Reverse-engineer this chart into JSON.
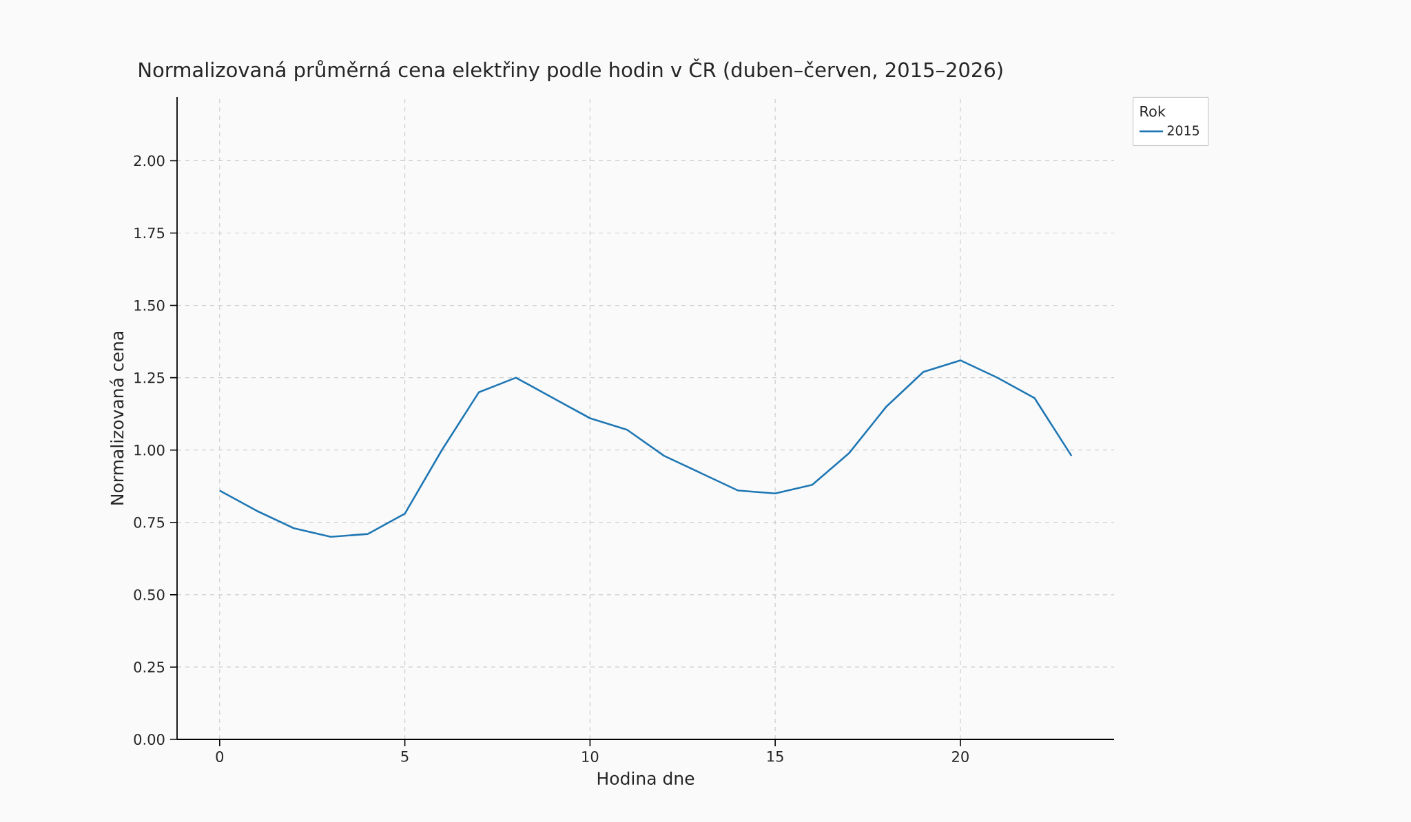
{
  "chart_data": {
    "type": "line",
    "title": "Normalizovaná průměrná cena elektřiny podle hodin v ČR (duben–červen, 2015–2026)",
    "xlabel": "Hodina dne",
    "ylabel": "Normalizovaná cena",
    "legend_title": "Rok",
    "x": [
      0,
      1,
      2,
      3,
      4,
      5,
      6,
      7,
      8,
      9,
      10,
      11,
      12,
      13,
      14,
      15,
      16,
      17,
      18,
      19,
      20,
      21,
      22,
      23
    ],
    "series": [
      {
        "name": "2015",
        "color": "#1f77b4",
        "values": [
          0.86,
          0.79,
          0.73,
          0.7,
          0.71,
          0.78,
          1.0,
          1.2,
          1.25,
          1.18,
          1.11,
          1.07,
          0.98,
          0.92,
          0.86,
          0.85,
          0.88,
          0.99,
          1.15,
          1.27,
          1.31,
          1.25,
          1.18,
          0.98
        ]
      }
    ],
    "xlim": [
      -1.15,
      24.15
    ],
    "ylim": [
      0,
      2.22
    ],
    "xticks": [
      0,
      5,
      10,
      15,
      20
    ],
    "yticks": [
      {
        "value": 0,
        "label": "0.00"
      },
      {
        "value": 0.25,
        "label": "0.25"
      },
      {
        "value": 0.5,
        "label": "0.50"
      },
      {
        "value": 0.75,
        "label": "0.75"
      },
      {
        "value": 1,
        "label": "1.00"
      },
      {
        "value": 1.25,
        "label": "1.25"
      },
      {
        "value": 1.5,
        "label": "1.50"
      },
      {
        "value": 1.75,
        "label": "1.75"
      },
      {
        "value": 2,
        "label": "2.00"
      }
    ],
    "grid": true,
    "legend": "top right",
    "marker": "none",
    "line_style": "solid"
  }
}
